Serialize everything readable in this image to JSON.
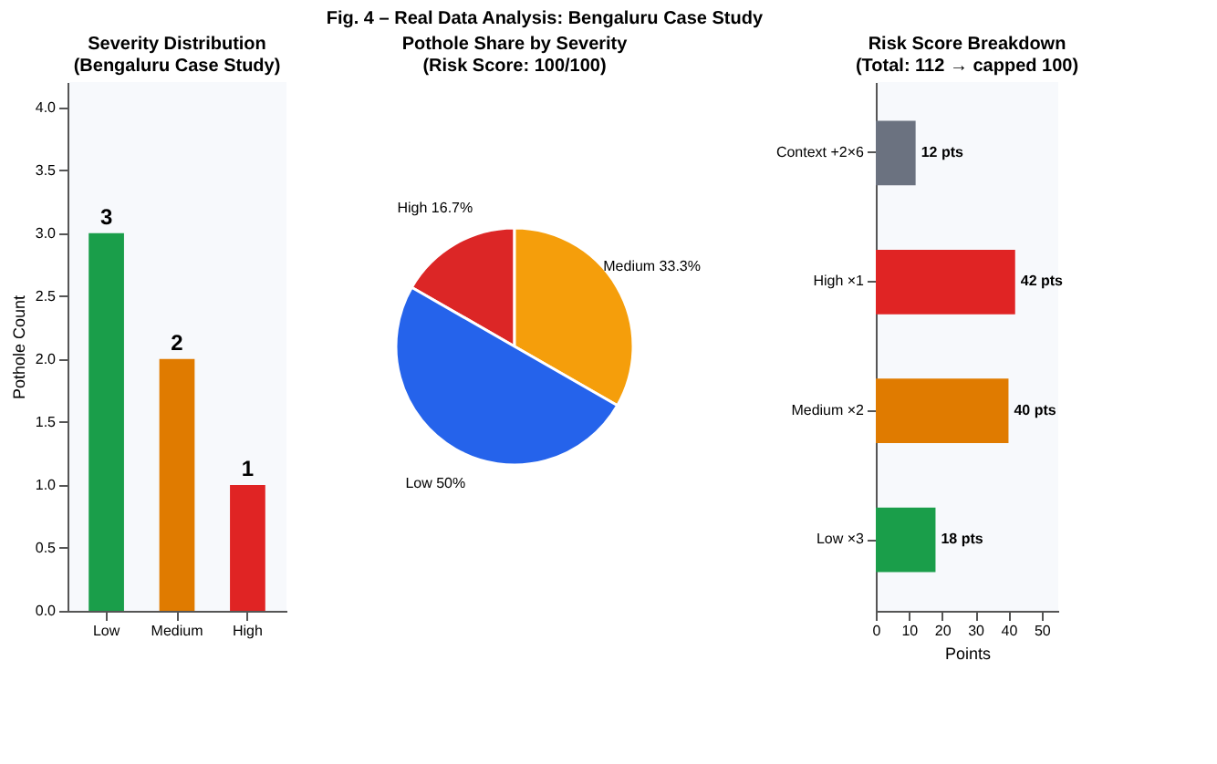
{
  "chart_data": [
    {
      "type": "bar",
      "title": "Severity Distribution\n(Bengaluru Case Study)",
      "annotations": [
        "Fig. 4 – Real Data Analysis: Bengaluru Case Study"
      ],
      "ylabel": "Pothole Count",
      "categories": [
        "Low",
        "Medium",
        "High"
      ],
      "values": [
        3,
        2,
        1
      ],
      "colors": [
        "#1a9e4a",
        "#e07b00",
        "#e02424"
      ],
      "ylim": [
        0,
        4.2
      ],
      "yticks": [
        {
          "value": 0,
          "label": "0.0"
        },
        0.5,
        {
          "value": 1,
          "label": "1.0"
        },
        1.5,
        {
          "value": 2,
          "label": "2.0"
        },
        2.5,
        {
          "value": 3,
          "label": "3.0"
        },
        3.5,
        {
          "value": 4,
          "label": "4.0"
        }
      ],
      "data_labels": true,
      "grid": false
    },
    {
      "type": "pie",
      "title": "Pothole Share by Severity\n(Risk Score: 100/100)",
      "categories": [
        "High",
        "Medium",
        "Low"
      ],
      "values": [
        16.7,
        33.3,
        50
      ],
      "colors": [
        "#dc2626",
        "#f59e0b",
        "#2563eb"
      ],
      "value_labels": [
        "16.7%",
        "33.3%",
        "50%"
      ]
    },
    {
      "type": "bar",
      "orientation": "horizontal",
      "title": "Risk Score Breakdown\n(Total: 112 → capped 100)",
      "xlabel": "Points",
      "categories": [
        "Context +2×6",
        "High ×1",
        "Medium ×2",
        "Low ×3"
      ],
      "values": [
        12,
        42,
        40,
        18
      ],
      "colors": [
        "#6b7280",
        "#e02424",
        "#e07b00",
        "#1a9e4a"
      ],
      "value_labels": [
        "12 pts",
        "42 pts",
        "40 pts",
        "18 pts"
      ],
      "xlim": [
        0,
        55
      ],
      "xticks": [
        0,
        10,
        20,
        30,
        40,
        50
      ],
      "grid": false
    }
  ]
}
